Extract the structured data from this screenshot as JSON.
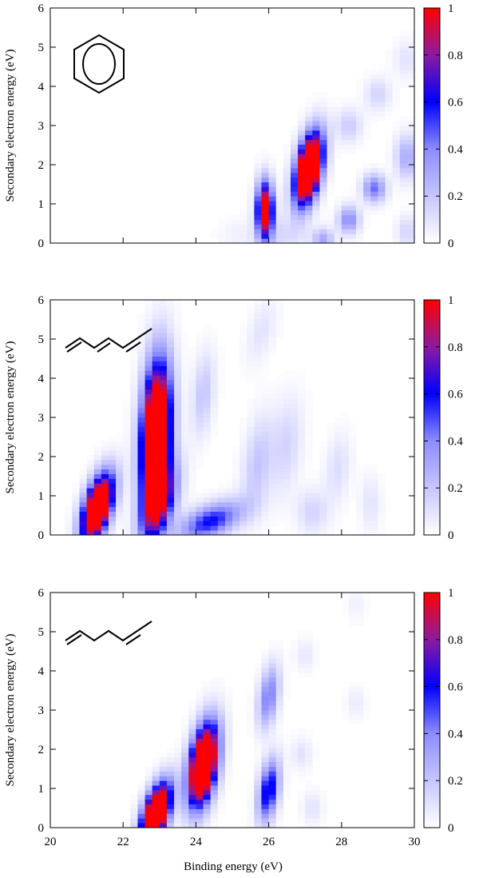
{
  "figure": {
    "xlabel": "Binding energy (eV)",
    "ylabel": "Secondary electron energy (eV)"
  },
  "chart_data": [
    {
      "type": "heatmap",
      "molecule_icon": "benzene-ring-icon",
      "xlim": [
        20,
        30
      ],
      "ylim": [
        0,
        6
      ],
      "x_ticks": [
        "20",
        "22",
        "24",
        "26",
        "28",
        "30"
      ],
      "y_ticks": [
        "0",
        "1",
        "2",
        "3",
        "4",
        "5",
        "6"
      ],
      "colorbar": {
        "min": 0,
        "max": 1,
        "ticks": [
          "0",
          "0.2",
          "0.4",
          "0.6",
          "0.8",
          "1"
        ]
      },
      "x_tick_labels_shown": false,
      "xlabel": "",
      "ylabel": "Secondary electron energy (eV)",
      "blobs": [
        {
          "x": 27.1,
          "y": 1.9,
          "intensity": 1.8,
          "sx": 0.26,
          "sy": 0.55,
          "tilt": 1.0
        },
        {
          "x": 25.9,
          "y": 0.85,
          "intensity": 1.2,
          "sx": 0.16,
          "sy": 0.5,
          "tilt": 0
        },
        {
          "x": 26.4,
          "y": 0.2,
          "intensity": 0.12,
          "sx": 0.5,
          "sy": 0.3,
          "tilt": 0
        },
        {
          "x": 27.5,
          "y": 0.1,
          "intensity": 0.3,
          "sx": 0.2,
          "sy": 0.2,
          "tilt": 0
        },
        {
          "x": 28.2,
          "y": 0.6,
          "intensity": 0.4,
          "sx": 0.2,
          "sy": 0.25,
          "tilt": 0
        },
        {
          "x": 28.9,
          "y": 1.4,
          "intensity": 0.45,
          "sx": 0.22,
          "sy": 0.25,
          "tilt": 0
        },
        {
          "x": 29.8,
          "y": 2.2,
          "intensity": 0.3,
          "sx": 0.22,
          "sy": 0.4,
          "tilt": 0
        },
        {
          "x": 29.8,
          "y": 0.3,
          "intensity": 0.15,
          "sx": 0.2,
          "sy": 0.3,
          "tilt": 0
        },
        {
          "x": 28.2,
          "y": 3.0,
          "intensity": 0.18,
          "sx": 0.25,
          "sy": 0.3,
          "tilt": 0
        },
        {
          "x": 29.0,
          "y": 3.8,
          "intensity": 0.15,
          "sx": 0.25,
          "sy": 0.3,
          "tilt": 0
        },
        {
          "x": 29.8,
          "y": 4.7,
          "intensity": 0.1,
          "sx": 0.25,
          "sy": 0.35,
          "tilt": 0
        },
        {
          "x": 25.2,
          "y": 0.2,
          "intensity": 0.05,
          "sx": 0.4,
          "sy": 0.3,
          "tilt": 0
        }
      ]
    },
    {
      "type": "heatmap",
      "molecule_icon": "hexatriene-chain-icon",
      "xlim": [
        20,
        30
      ],
      "ylim": [
        0,
        6
      ],
      "x_ticks": [
        "20",
        "22",
        "24",
        "26",
        "28",
        "30"
      ],
      "y_ticks": [
        "0",
        "1",
        "2",
        "3",
        "4",
        "5",
        "6"
      ],
      "colorbar": {
        "min": 0,
        "max": 1,
        "ticks": [
          "0",
          "0.2",
          "0.4",
          "0.6",
          "0.8",
          "1"
        ]
      },
      "x_tick_labels_shown": false,
      "xlabel": "",
      "ylabel": "Secondary electron energy (eV)",
      "blobs": [
        {
          "x": 21.3,
          "y": 0.7,
          "intensity": 1.6,
          "sx": 0.3,
          "sy": 0.5,
          "tilt": 1.0
        },
        {
          "x": 22.9,
          "y": 2.5,
          "intensity": 1.7,
          "sx": 0.28,
          "sy": 1.25,
          "tilt": 1.0
        },
        {
          "x": 23.0,
          "y": 0.8,
          "intensity": 0.7,
          "sx": 0.35,
          "sy": 0.55,
          "tilt": 1.0
        },
        {
          "x": 24.4,
          "y": 0.35,
          "intensity": 0.6,
          "sx": 0.6,
          "sy": 0.3,
          "tilt": 0.3
        },
        {
          "x": 24.2,
          "y": 3.6,
          "intensity": 0.2,
          "sx": 0.22,
          "sy": 0.7,
          "tilt": 1.0
        },
        {
          "x": 25.8,
          "y": 5.2,
          "intensity": 0.1,
          "sx": 0.3,
          "sy": 0.5,
          "tilt": 1.0
        },
        {
          "x": 25.7,
          "y": 1.8,
          "intensity": 0.2,
          "sx": 0.3,
          "sy": 0.8,
          "tilt": 1.0
        },
        {
          "x": 26.5,
          "y": 2.3,
          "intensity": 0.15,
          "sx": 0.3,
          "sy": 0.8,
          "tilt": 0.8
        },
        {
          "x": 27.2,
          "y": 0.6,
          "intensity": 0.15,
          "sx": 0.3,
          "sy": 0.4,
          "tilt": 0
        },
        {
          "x": 27.9,
          "y": 1.7,
          "intensity": 0.12,
          "sx": 0.25,
          "sy": 0.6,
          "tilt": 0.6
        },
        {
          "x": 28.8,
          "y": 0.8,
          "intensity": 0.1,
          "sx": 0.2,
          "sy": 0.5,
          "tilt": 0
        }
      ]
    },
    {
      "type": "heatmap",
      "molecule_icon": "hexadiene-chain-icon",
      "xlim": [
        20,
        30
      ],
      "ylim": [
        0,
        6
      ],
      "x_ticks": [
        "20",
        "22",
        "24",
        "26",
        "28",
        "30"
      ],
      "y_ticks": [
        "0",
        "1",
        "2",
        "3",
        "4",
        "5",
        "6"
      ],
      "colorbar": {
        "min": 0,
        "max": 1,
        "ticks": [
          "0",
          "0.2",
          "0.4",
          "0.6",
          "0.8",
          "1"
        ]
      },
      "x_tick_labels_shown": true,
      "xlabel": "Binding energy (eV)",
      "ylabel": "Secondary electron energy (eV)",
      "blobs": [
        {
          "x": 22.9,
          "y": 0.35,
          "intensity": 1.7,
          "sx": 0.28,
          "sy": 0.45,
          "tilt": 1.0
        },
        {
          "x": 24.2,
          "y": 1.6,
          "intensity": 1.7,
          "sx": 0.28,
          "sy": 0.65,
          "tilt": 1.0
        },
        {
          "x": 26.0,
          "y": 0.95,
          "intensity": 0.7,
          "sx": 0.2,
          "sy": 0.5,
          "tilt": 1.0
        },
        {
          "x": 26.0,
          "y": 3.35,
          "intensity": 0.45,
          "sx": 0.2,
          "sy": 0.5,
          "tilt": 1.0
        },
        {
          "x": 26.9,
          "y": 1.9,
          "intensity": 0.1,
          "sx": 0.2,
          "sy": 0.3,
          "tilt": 0
        },
        {
          "x": 27.2,
          "y": 0.5,
          "intensity": 0.1,
          "sx": 0.2,
          "sy": 0.3,
          "tilt": 0
        },
        {
          "x": 27.0,
          "y": 4.4,
          "intensity": 0.08,
          "sx": 0.2,
          "sy": 0.3,
          "tilt": 0
        },
        {
          "x": 28.4,
          "y": 3.2,
          "intensity": 0.07,
          "sx": 0.2,
          "sy": 0.3,
          "tilt": 0
        },
        {
          "x": 28.4,
          "y": 5.7,
          "intensity": 0.05,
          "sx": 0.2,
          "sy": 0.3,
          "tilt": 0
        }
      ]
    }
  ]
}
